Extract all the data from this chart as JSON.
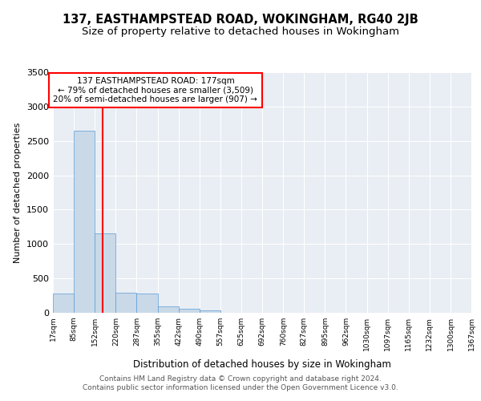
{
  "title": "137, EASTHAMPSTEAD ROAD, WOKINGHAM, RG40 2JB",
  "subtitle": "Size of property relative to detached houses in Wokingham",
  "xlabel": "Distribution of detached houses by size in Wokingham",
  "ylabel": "Number of detached properties",
  "bar_color": "#c9d9e8",
  "bar_edge_color": "#5b9bd5",
  "red_line_x": 177,
  "annotation_text": "137 EASTHAMPSTEAD ROAD: 177sqm\n← 79% of detached houses are smaller (3,509)\n20% of semi-detached houses are larger (907) →",
  "footer_line1": "Contains HM Land Registry data © Crown copyright and database right 2024.",
  "footer_line2": "Contains public sector information licensed under the Open Government Licence v3.0.",
  "bin_edges": [
    17,
    85,
    152,
    220,
    287,
    355,
    422,
    490,
    557,
    625,
    692,
    760,
    827,
    895,
    962,
    1030,
    1097,
    1165,
    1232,
    1300,
    1367
  ],
  "bin_labels": [
    "17sqm",
    "85sqm",
    "152sqm",
    "220sqm",
    "287sqm",
    "355sqm",
    "422sqm",
    "490sqm",
    "557sqm",
    "625sqm",
    "692sqm",
    "760sqm",
    "827sqm",
    "895sqm",
    "962sqm",
    "1030sqm",
    "1097sqm",
    "1165sqm",
    "1232sqm",
    "1300sqm",
    "1367sqm"
  ],
  "bar_heights": [
    280,
    2650,
    1150,
    290,
    280,
    90,
    60,
    40,
    0,
    0,
    0,
    0,
    0,
    0,
    0,
    0,
    0,
    0,
    0,
    0
  ],
  "ylim": [
    0,
    3500
  ],
  "yticks": [
    0,
    500,
    1000,
    1500,
    2000,
    2500,
    3000,
    3500
  ],
  "background_color": "#e8eef4",
  "grid_color": "#ffffff",
  "title_fontsize": 10.5,
  "subtitle_fontsize": 9.5,
  "footer_fontsize": 6.5
}
